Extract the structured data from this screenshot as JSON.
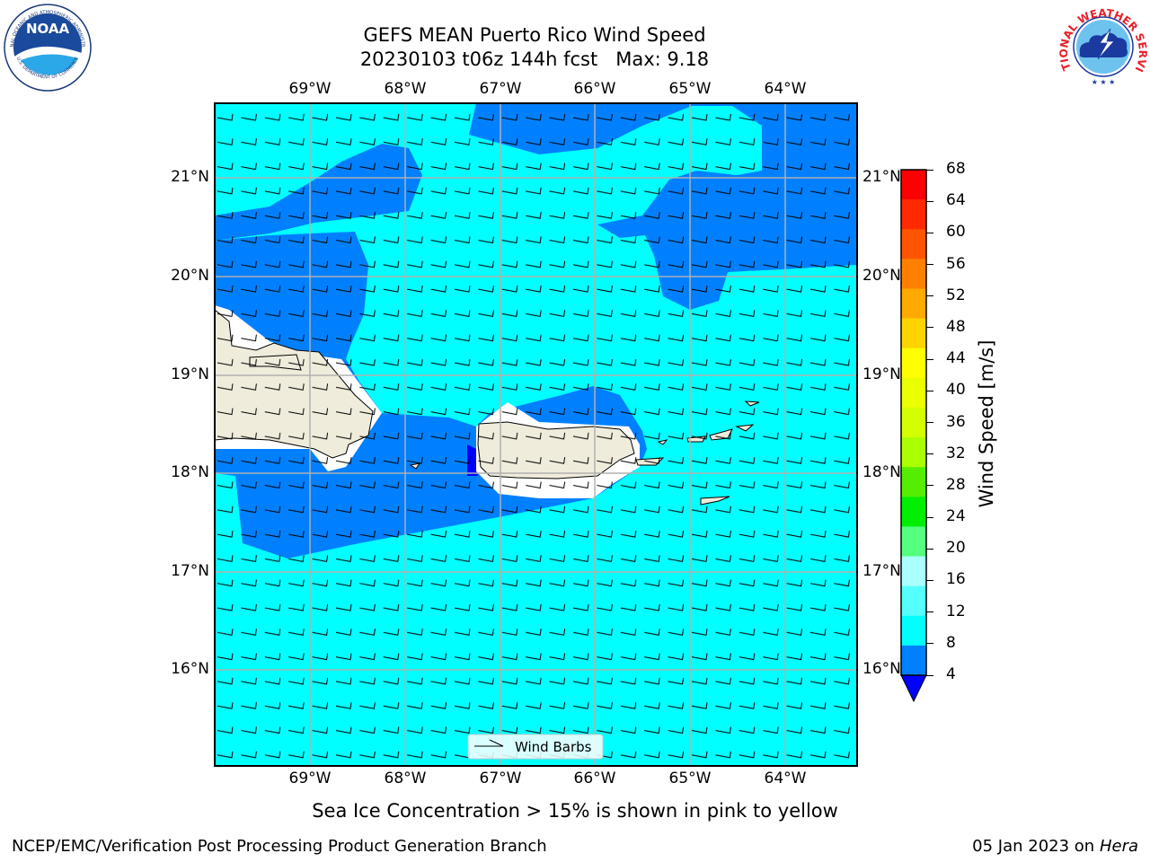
{
  "header": {
    "title_line1": "GEFS MEAN Puerto Rico Wind Speed",
    "title_line2": "20230103 t06z 144h fcst   Max: 9.18"
  },
  "logos": {
    "noaa": {
      "text": "NOAA",
      "ring_top": "NATIONAL OCEANIC AND ATMOSPHERIC ADMINISTRATION",
      "ring_bottom": "U.S. DEPARTMENT OF COMMERCE",
      "icon": "noaa-logo-icon"
    },
    "nws": {
      "ring": "NATIONAL WEATHER SERVICE",
      "icon": "nws-logo-icon"
    }
  },
  "map": {
    "lon_labels": [
      "69°W",
      "68°W",
      "67°W",
      "66°W",
      "65°W",
      "64°W"
    ],
    "lat_labels": [
      "21°N",
      "20°N",
      "19°N",
      "18°N",
      "17°N",
      "16°N"
    ],
    "legend_label": "Wind Barbs",
    "colors": {
      "ocean_low": "#00ffff",
      "ocean_mid": "#0080ff",
      "ocean_min": "#0000ff",
      "land": "#efecdc",
      "grid": "#b0b0b0"
    }
  },
  "colorbar": {
    "label": "Wind Speed [m/s]",
    "ticks": [
      "68",
      "64",
      "60",
      "56",
      "52",
      "48",
      "44",
      "40",
      "36",
      "32",
      "28",
      "24",
      "20",
      "16",
      "12",
      "8",
      "4"
    ],
    "colors": [
      "#ff0000",
      "#ff2a00",
      "#ff5500",
      "#ff8000",
      "#ffaa00",
      "#ffd400",
      "#ffff00",
      "#eaff00",
      "#d4ff00",
      "#aaff00",
      "#55ee00",
      "#00ee00",
      "#55ff80",
      "#aaffff",
      "#55ffff",
      "#00ffff",
      "#0080ff"
    ],
    "under_color": "#0000ff"
  },
  "footer": {
    "caption": "Sea Ice Concentration > 15% is shown in pink to yellow",
    "left": "NCEP/EMC/Verification Post Processing Product Generation Branch",
    "right_prefix": "05 Jan 2023 on ",
    "right_host": "Hera"
  }
}
